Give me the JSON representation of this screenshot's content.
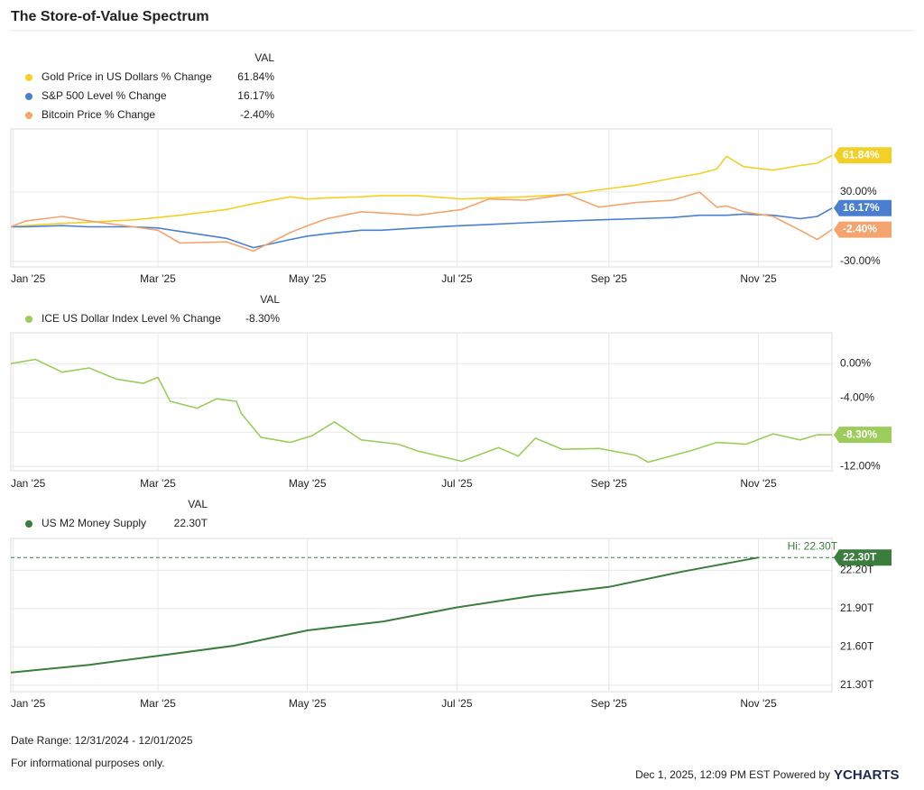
{
  "title": "The Store-of-Value Spectrum",
  "chart_data": [
    {
      "type": "line",
      "legend_header": "VAL",
      "x": [
        -1,
        5,
        20,
        31,
        49,
        59,
        68,
        87,
        98,
        113,
        120,
        128,
        142,
        150,
        165,
        183,
        194,
        209,
        226,
        239,
        254,
        269,
        280,
        287,
        291,
        298,
        310,
        321,
        328,
        334
      ],
      "xlim": [
        -1,
        334
      ],
      "xticks": [
        {
          "value": 0,
          "label": "Jan '25"
        },
        {
          "value": 59,
          "label": "Mar '25"
        },
        {
          "value": 120,
          "label": "May '25"
        },
        {
          "value": 181,
          "label": "Jul '25"
        },
        {
          "value": 243,
          "label": "Sep '25"
        },
        {
          "value": 304,
          "label": "Nov '25"
        }
      ],
      "ylim": [
        -34.7,
        84.6
      ],
      "yticks": [
        {
          "value": 30,
          "label": "30.00%"
        },
        {
          "value": -30,
          "label": "-30.00%"
        }
      ],
      "grid": true,
      "series": [
        {
          "name": "Gold Price in US Dollars % Change",
          "color": "#f2d027",
          "last_label": "61.84%",
          "values": [
            0,
            1,
            3,
            4,
            6,
            8,
            10,
            15,
            20,
            26,
            24,
            25,
            26,
            27,
            27,
            24,
            25,
            26,
            28,
            32,
            36,
            42,
            46,
            50,
            61,
            52,
            49,
            53,
            55,
            61.84
          ]
        },
        {
          "name": "S&P 500 Level % Change",
          "color": "#4a7fd0",
          "last_label": "16.17%",
          "values": [
            0,
            0,
            1,
            0,
            0,
            -1,
            -4,
            -10,
            -18,
            -11,
            -8,
            -6,
            -3,
            -3,
            -1,
            1,
            2,
            3.5,
            5,
            6,
            7,
            8,
            10,
            10,
            10,
            11,
            10,
            7,
            9,
            16.17
          ]
        },
        {
          "name": "Bitcoin Price % Change",
          "color": "#f4a46e",
          "last_label": "-2.40%",
          "values": [
            0,
            5,
            9,
            5,
            0,
            -3,
            -14,
            -13,
            -21,
            -5,
            1,
            7,
            13,
            12,
            10,
            15,
            24,
            23,
            28,
            17,
            21,
            23,
            30,
            17,
            18,
            13,
            9,
            -3,
            -11,
            -2.4
          ]
        }
      ]
    },
    {
      "type": "line",
      "legend_header": "VAL",
      "x": [
        -1,
        9,
        20,
        31,
        42,
        53,
        59,
        64,
        75,
        83,
        91,
        93,
        101,
        113,
        122,
        131,
        142,
        157,
        165,
        183,
        198,
        206,
        213,
        224,
        239,
        254,
        259,
        276,
        287,
        299,
        310,
        321,
        328,
        334
      ],
      "xlim": [
        -1,
        334
      ],
      "xticks": [
        {
          "value": 0,
          "label": "Jan '25"
        },
        {
          "value": 59,
          "label": "Mar '25"
        },
        {
          "value": 120,
          "label": "May '25"
        },
        {
          "value": 181,
          "label": "Jul '25"
        },
        {
          "value": 243,
          "label": "Sep '25"
        },
        {
          "value": 304,
          "label": "Nov '25"
        }
      ],
      "ylim": [
        -12.5,
        3.6
      ],
      "yticks": [
        {
          "value": 0,
          "label": "0.00%"
        },
        {
          "value": -4,
          "label": "-4.00%"
        },
        {
          "value": -8,
          "label": "-8.00%"
        },
        {
          "value": -12,
          "label": "-12.00%"
        }
      ],
      "grid": true,
      "series": [
        {
          "name": "ICE US Dollar Index Level % Change",
          "color": "#9ccc5a",
          "last_label": "-8.30%",
          "values": [
            0,
            0.5,
            -1,
            -0.5,
            -1.8,
            -2.3,
            -1.6,
            -4.4,
            -5.2,
            -4.1,
            -4.4,
            -5.8,
            -8.6,
            -9.2,
            -8.4,
            -6.8,
            -8.9,
            -9.4,
            -10.2,
            -11.4,
            -9.8,
            -10.8,
            -8.7,
            -10,
            -9.9,
            -10.7,
            -11.5,
            -10.2,
            -9.2,
            -9.4,
            -8.2,
            -8.9,
            -8.3,
            -8.3
          ]
        }
      ]
    },
    {
      "type": "line",
      "legend_header": "VAL",
      "x": [
        -1,
        31,
        59,
        90,
        120,
        151,
        181,
        212,
        243,
        273,
        304
      ],
      "xlim": [
        -1,
        334
      ],
      "xticks": [
        {
          "value": 0,
          "label": "Jan '25"
        },
        {
          "value": 59,
          "label": "Mar '25"
        },
        {
          "value": 120,
          "label": "May '25"
        },
        {
          "value": 181,
          "label": "Jul '25"
        },
        {
          "value": 243,
          "label": "Sep '25"
        },
        {
          "value": 304,
          "label": "Nov '25"
        }
      ],
      "ylim": [
        21.25,
        22.45
      ],
      "yticks": [
        {
          "value": 22.2,
          "label": "22.20T"
        },
        {
          "value": 21.9,
          "label": "21.90T"
        },
        {
          "value": 21.6,
          "label": "21.60T"
        },
        {
          "value": 21.3,
          "label": "21.30T"
        }
      ],
      "grid": true,
      "hi": {
        "value": 22.3,
        "label": "Hi: 22.30T"
      },
      "series": [
        {
          "name": "US M2 Money Supply",
          "color": "#3a7d3c",
          "last_label": "22.30T",
          "values": [
            21.4,
            21.46,
            21.53,
            21.61,
            21.73,
            21.8,
            21.91,
            22.0,
            22.07,
            22.19,
            22.3
          ]
        }
      ]
    }
  ],
  "footer": {
    "date_range": "Date Range: 12/31/2024 - 12/01/2025",
    "disclaimer": "For informational purposes only.",
    "timestamp": "Dec 1, 2025, 12:09 PM EST Powered by",
    "logo": "YCHARTS"
  }
}
